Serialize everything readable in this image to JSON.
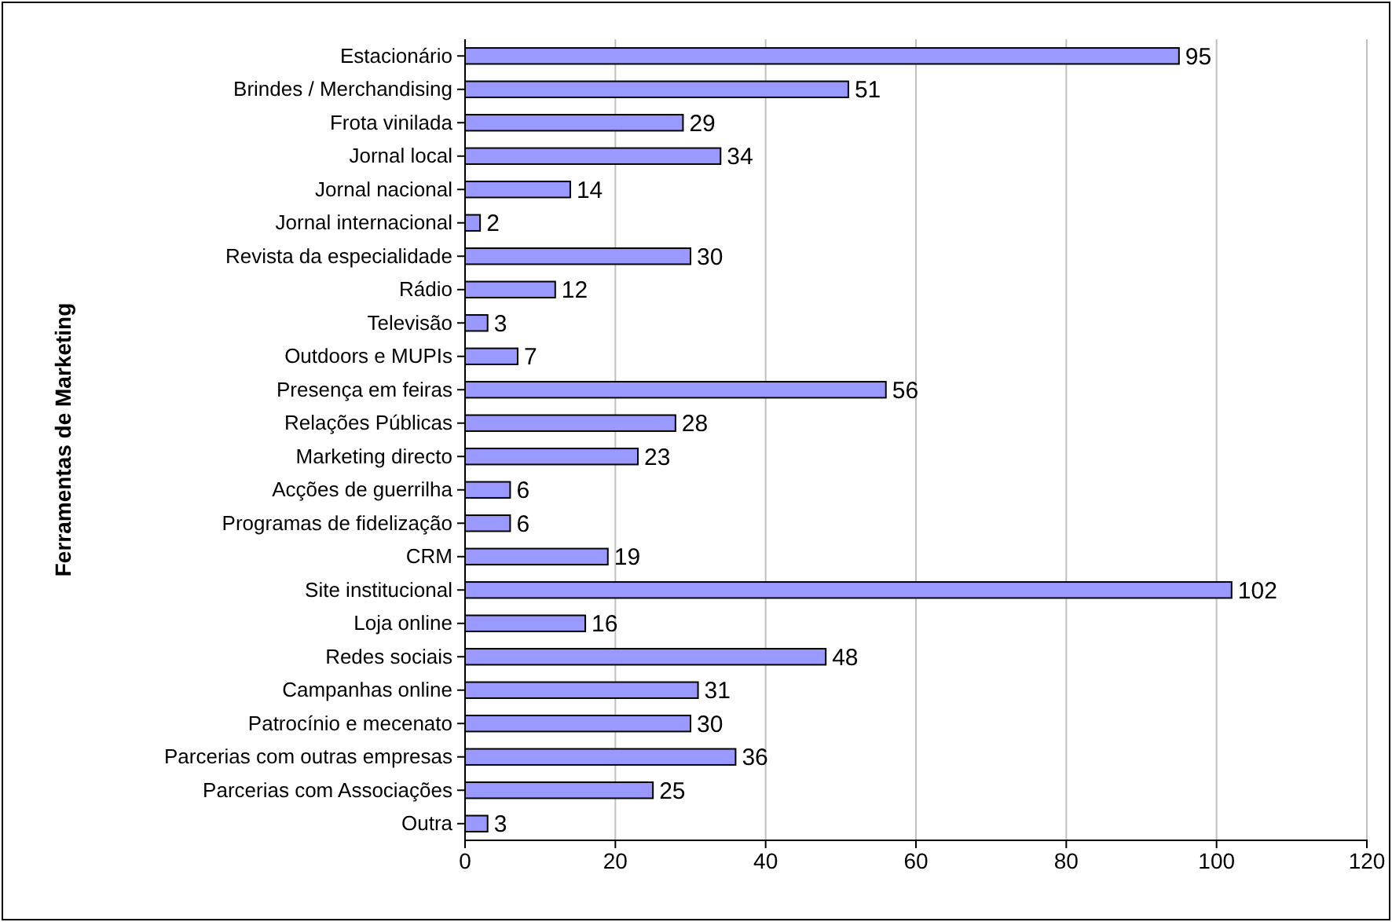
{
  "chart_data": {
    "type": "bar",
    "orientation": "horizontal",
    "ylabel": "Ferramentas de Marketing",
    "categories": [
      "Estacionário",
      "Brindes / Merchandising",
      "Frota vinilada",
      "Jornal local",
      "Jornal nacional",
      "Jornal internacional",
      "Revista da especialidade",
      "Rádio",
      "Televisão",
      "Outdoors e MUPIs",
      "Presença em feiras",
      "Relações Públicas",
      "Marketing directo",
      "Acções de guerrilha",
      "Programas de fidelização",
      "CRM",
      "Site institucional",
      "Loja online",
      "Redes sociais",
      "Campanhas online",
      "Patrocínio e mecenato",
      "Parcerias com outras empresas",
      "Parcerias com Associações",
      "Outra"
    ],
    "values": [
      95,
      51,
      29,
      34,
      14,
      2,
      30,
      12,
      3,
      7,
      56,
      28,
      23,
      6,
      6,
      19,
      102,
      16,
      48,
      31,
      30,
      36,
      25,
      3
    ],
    "color": "#9999ff",
    "xlim": [
      0,
      120
    ],
    "xticks": [
      0,
      20,
      40,
      60,
      80,
      100,
      120
    ],
    "grid": "x",
    "data_labels": true
  }
}
